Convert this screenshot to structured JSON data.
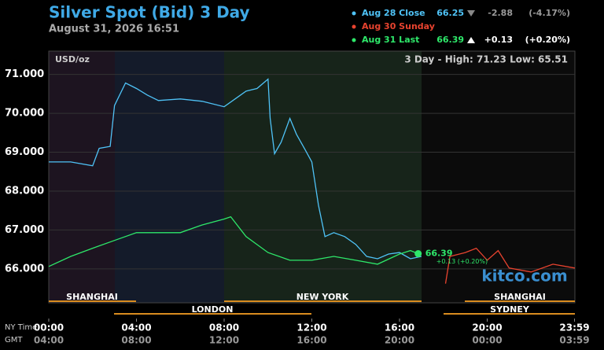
{
  "chart_data": {
    "type": "line",
    "title": "Silver Spot (Bid) 3 Day",
    "subtitle": "August 31, 2026 16:51",
    "unit": "USD/oz",
    "range_note": "3 Day - High: 71.23  Low: 65.51",
    "watermark": "kitco.com",
    "xlabel": "NY Time",
    "xlabel2": "GMT",
    "sessions": [
      "SHANGHAI",
      "LONDON",
      "NEW YORK",
      "SHANGHAI",
      "SYDNEY"
    ],
    "xlim": [
      0,
      24
    ],
    "xticks": [
      {
        "value": 0,
        "label": "00:00"
      },
      {
        "value": 4,
        "label": "04:00"
      },
      {
        "value": 8,
        "label": "08:00"
      },
      {
        "value": 12,
        "label": "12:00"
      },
      {
        "value": 16,
        "label": "16:00"
      },
      {
        "value": 20,
        "label": "20:00"
      },
      {
        "value": 23.983,
        "label": "23:59"
      }
    ],
    "gmt_labels": [
      "04:00",
      "08:00",
      "12:00",
      "16:00",
      "20:00",
      "00:00",
      "03:59"
    ],
    "ylim": [
      65.45,
      71.6
    ],
    "yticks": [
      {
        "value": 66,
        "label": "66.000"
      },
      {
        "value": 67,
        "label": "67.000"
      },
      {
        "value": 68,
        "label": "68.000"
      },
      {
        "value": 69,
        "label": "69.000"
      },
      {
        "value": 70,
        "label": "70.000"
      },
      {
        "value": 71,
        "label": "71.000"
      }
    ],
    "grid": true,
    "series": [
      {
        "name": "Aug 28 Close",
        "color": "#4fc3f7",
        "last": "66.25",
        "change": "-2.88",
        "pct": "(-4.17%)",
        "direction": "down",
        "x": [
          0,
          1,
          2,
          2.3,
          2.8,
          3.0,
          3.5,
          4,
          4.5,
          5,
          6,
          7,
          8,
          8.5,
          9,
          9.5,
          10,
          10.1,
          10.3,
          10.6,
          11,
          11.3,
          11.7,
          12,
          12.3,
          12.6,
          13,
          13.5,
          14,
          14.5,
          15,
          15.5,
          16,
          16.5,
          17
        ],
        "values": [
          68.75,
          68.75,
          68.65,
          69.1,
          69.15,
          70.2,
          70.78,
          70.64,
          70.47,
          70.33,
          70.37,
          70.31,
          70.17,
          70.37,
          70.57,
          70.64,
          70.88,
          69.87,
          68.96,
          69.26,
          69.87,
          69.46,
          69.06,
          68.75,
          67.64,
          66.83,
          66.93,
          66.83,
          66.63,
          66.32,
          66.26,
          66.38,
          66.42,
          66.26,
          66.32
        ]
      },
      {
        "name": "Aug 30 Sunday",
        "color": "#e8432f",
        "x": [
          18.1,
          18.3,
          19,
          19.5,
          20,
          20.5,
          21,
          22,
          23,
          24
        ],
        "values": [
          65.62,
          66.32,
          66.42,
          66.53,
          66.22,
          66.47,
          66.02,
          65.92,
          66.12,
          66.02
        ]
      },
      {
        "name": "Aug 31 Last",
        "color": "#2ee86a",
        "last": "66.39",
        "change": "+0.13",
        "pct": "(+0.20%)",
        "direction": "up",
        "x": [
          0,
          1,
          2,
          3,
          4,
          5,
          6,
          7,
          8,
          8.3,
          9,
          10,
          11,
          12,
          13,
          14,
          15,
          16,
          16.5,
          16.85
        ],
        "values": [
          66.06,
          66.32,
          66.53,
          66.73,
          66.93,
          66.93,
          66.93,
          67.13,
          67.28,
          67.34,
          66.83,
          66.42,
          66.22,
          66.22,
          66.32,
          66.22,
          66.12,
          66.38,
          66.47,
          66.39
        ]
      }
    ],
    "last_label": "66.39",
    "last_change": "+0.13 (+0.20%)"
  }
}
